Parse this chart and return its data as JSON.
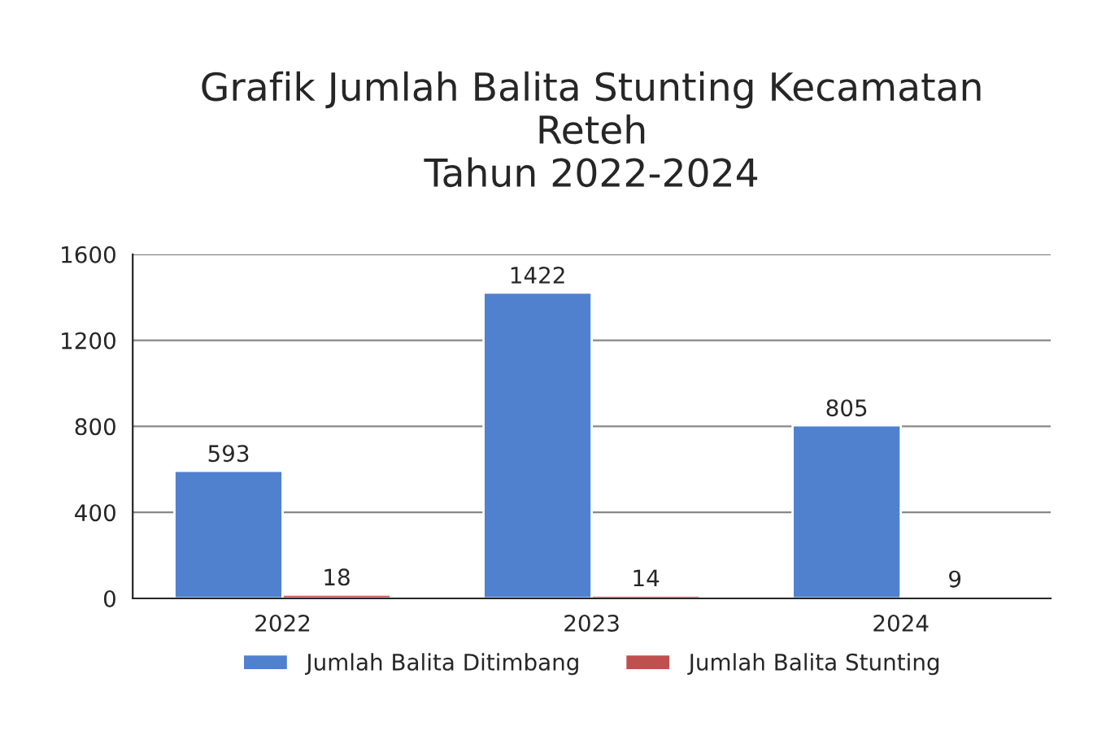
{
  "chart_data": {
    "type": "bar",
    "title": "Grafik Jumlah Balita Stunting Kecamatan\nReteh\nTahun 2022-2024",
    "categories": [
      "2022",
      "2023",
      "2024"
    ],
    "series": [
      {
        "name": "Jumlah Balita Ditimbang",
        "color": "#4f81cf",
        "values": [
          593,
          1422,
          805
        ]
      },
      {
        "name": "Jumlah Balita Stunting",
        "color": "#c0504d",
        "values": [
          18,
          14,
          9
        ]
      }
    ],
    "ylim": [
      0,
      1600
    ],
    "yticks": [
      0,
      400,
      800,
      1200,
      1600
    ],
    "grid": "y",
    "legend": "bottom",
    "data_labels": true
  }
}
